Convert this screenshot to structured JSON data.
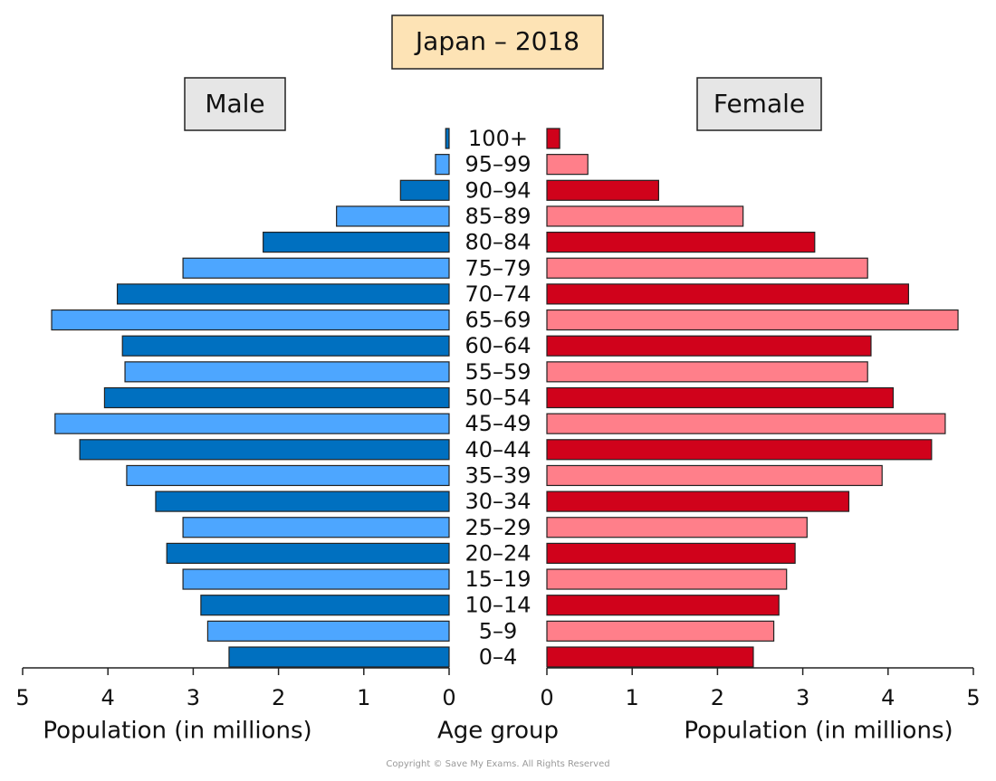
{
  "chart_data": {
    "type": "pyramid",
    "title": "Japan – 2018",
    "categories": [
      "0–4",
      "5–9",
      "10–14",
      "15–19",
      "20–24",
      "25–29",
      "30–34",
      "35–39",
      "40–44",
      "45–49",
      "50–54",
      "55–59",
      "60–64",
      "65–69",
      "70–74",
      "75–79",
      "80–84",
      "85–89",
      "90–94",
      "95–99",
      "100+"
    ],
    "series": [
      {
        "name": "Male",
        "colors": [
          "#0070c0",
          "#4da6ff"
        ],
        "values": [
          2.58,
          2.83,
          2.91,
          3.12,
          3.31,
          3.12,
          3.44,
          3.78,
          4.33,
          4.62,
          4.04,
          3.8,
          3.83,
          4.66,
          3.89,
          3.12,
          2.18,
          1.32,
          0.57,
          0.16,
          0.04
        ]
      },
      {
        "name": "Female",
        "colors": [
          "#d0021b",
          "#ff7f8a"
        ],
        "values": [
          2.42,
          2.66,
          2.72,
          2.81,
          2.91,
          3.05,
          3.54,
          3.93,
          4.51,
          4.67,
          4.06,
          3.76,
          3.8,
          4.82,
          4.24,
          3.76,
          3.14,
          2.3,
          1.31,
          0.48,
          0.15
        ]
      }
    ],
    "xlim": [
      0,
      5
    ],
    "xticks": [
      0,
      1,
      2,
      3,
      4,
      5
    ],
    "xlabel": "Population (in millions)",
    "ylabel": "Age group"
  },
  "copyright": "Copyright © Save My Exams. All Rights Reserved"
}
